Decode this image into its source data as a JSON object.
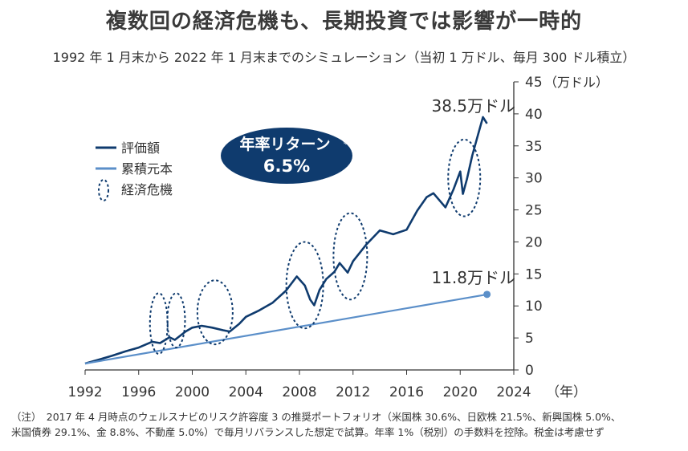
{
  "title": "複数回の経済危機も、長期投資では影響が一時的",
  "subtitle": "1992 年 1 月末から 2022 年 1 月末までのシミュレーション（当初 1 万ドル、毎月 300 ドル積立）",
  "note": {
    "line1": "（注）　2017 年 4 月時点のウェルスナビのリスク許容度 3 の推奨ポートフォリオ（米国株 30.6%、日欧株 21.5%、新興国株 5.0%、",
    "line2": "米国債券 29.1%、金 8.8%、不動産 5.0%）で毎月リバランスした想定で試算。年率 1%（税別）の手数料を控除。税金は考慮せず"
  },
  "return_badge": {
    "label": "年率リターン",
    "mark": "※",
    "value": "6.5%"
  },
  "colors": {
    "value_line": "#0f3b6e",
    "principal_line": "#5b8fc9",
    "badge_bg": "#0f3b6e",
    "axis": "#333333"
  },
  "chart_data": {
    "type": "line",
    "ylabel": "（万ドル）",
    "xlabel": "（年）",
    "xlim": [
      1992,
      2024
    ],
    "ylim": [
      0,
      45
    ],
    "x_ticks": [
      "1992",
      "1996",
      "2000",
      "2004",
      "2008",
      "2012",
      "2016",
      "2020",
      "2024"
    ],
    "y_ticks": [
      "0",
      "5",
      "10",
      "15",
      "20",
      "25",
      "30",
      "35",
      "40",
      "45"
    ],
    "legend": {
      "position": "left",
      "entries": [
        "評価額",
        "累積元本",
        "経済危機"
      ]
    },
    "series": [
      {
        "name": "評価額",
        "x": [
          1992,
          1993,
          1994,
          1995,
          1996,
          1997,
          1997.6,
          1998.3,
          1998.7,
          1999.5,
          2000,
          2000.7,
          2001.5,
          2002.3,
          2002.8,
          2003.5,
          2004,
          2005,
          2006,
          2007,
          2007.8,
          2008.4,
          2008.8,
          2009.1,
          2009.5,
          2010,
          2010.6,
          2011,
          2011.6,
          2012,
          2013,
          2014,
          2015,
          2016,
          2016.8,
          2017.5,
          2018,
          2018.9,
          2019.5,
          2020,
          2020.2,
          2020.5,
          2020.9,
          2021.3,
          2021.7,
          2022
        ],
        "values": [
          1.0,
          1.6,
          2.2,
          2.9,
          3.5,
          4.4,
          4.2,
          5.1,
          4.7,
          6.0,
          6.6,
          6.9,
          6.6,
          6.2,
          6.0,
          7.2,
          8.3,
          9.3,
          10.5,
          12.4,
          14.6,
          13.2,
          11.0,
          10.1,
          12.5,
          14.2,
          15.3,
          16.7,
          15.2,
          17.0,
          19.6,
          21.8,
          21.2,
          21.9,
          24.9,
          27.0,
          27.6,
          25.4,
          28.2,
          31.0,
          27.5,
          29.8,
          33.5,
          36.5,
          39.5,
          38.5
        ]
      },
      {
        "name": "累積元本",
        "x": [
          1992,
          2022
        ],
        "values": [
          1.0,
          11.8
        ]
      }
    ],
    "annotations": [
      {
        "text": "38.5万ドル",
        "x": 2022,
        "y": 38.5
      },
      {
        "text": "11.8万ドル",
        "x": 2022,
        "y": 11.8
      }
    ],
    "crisis_periods": [
      {
        "x": 1997.5,
        "y_low": 2.5,
        "y_high": 12.0
      },
      {
        "x": 1998.8,
        "y_low": 3.5,
        "y_high": 12.0
      },
      {
        "x": 2001.7,
        "y_low": 4.0,
        "y_high": 14.0
      },
      {
        "x": 2008.4,
        "y_low": 6.5,
        "y_high": 20.0
      },
      {
        "x": 2011.8,
        "y_low": 11.0,
        "y_high": 24.5
      },
      {
        "x": 2020.3,
        "y_low": 24.0,
        "y_high": 36.0
      }
    ]
  }
}
